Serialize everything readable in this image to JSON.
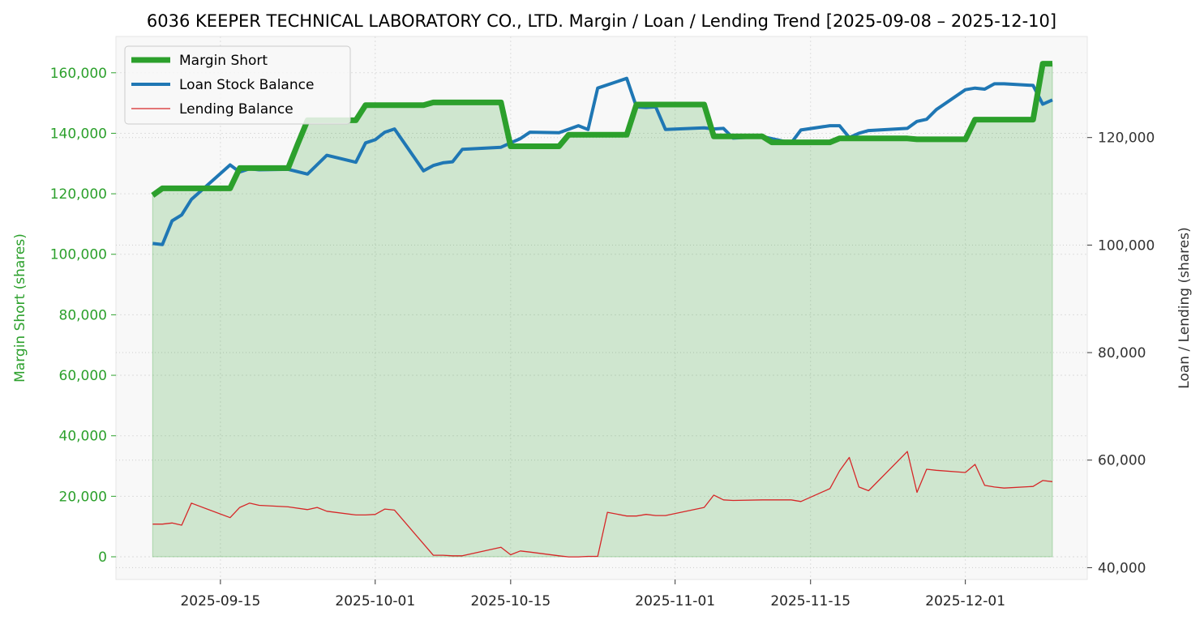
{
  "chart_data": {
    "type": "line",
    "title": "6036 KEEPER TECHNICAL LABORATORY CO., LTD. Margin / Loan / Lending Trend [2025-09-08 – 2025-12-10]",
    "left_axis": {
      "label": "Margin Short (shares)",
      "range": [
        -7500,
        172000
      ],
      "ticks": [
        0,
        20000,
        40000,
        60000,
        80000,
        100000,
        120000,
        140000,
        160000
      ],
      "tick_labels": [
        "0",
        "20,000",
        "40,000",
        "60,000",
        "80,000",
        "100,000",
        "120,000",
        "140,000",
        "160,000"
      ],
      "color": "#2ca02c"
    },
    "right_axis": {
      "label": "Loan / Lending (shares)",
      "range": [
        37800,
        138800
      ],
      "ticks": [
        40000,
        60000,
        80000,
        100000,
        120000
      ],
      "tick_labels": [
        "40,000",
        "60,000",
        "80,000",
        "100,000",
        "120,000"
      ],
      "color": "#333333"
    },
    "x_axis": {
      "start": "2025-09-08",
      "end": "2025-12-10",
      "tick_dates": [
        "2025-09-15",
        "2025-10-01",
        "2025-10-15",
        "2025-11-01",
        "2025-11-15",
        "2025-12-01"
      ],
      "tick_labels": [
        "2025-09-15",
        "2025-10-01",
        "2025-10-15",
        "2025-11-01",
        "2025-11-15",
        "2025-12-01"
      ]
    },
    "grid": true,
    "legend_position": "top-left",
    "series": [
      {
        "name": "Margin Short",
        "axis": "left",
        "color": "#2ca02c",
        "style": "thick line with filled area",
        "points": [
          [
            "2025-09-08",
            119500
          ],
          [
            "2025-09-09",
            121800
          ],
          [
            "2025-09-10",
            121800
          ],
          [
            "2025-09-11",
            121800
          ],
          [
            "2025-09-12",
            121800
          ],
          [
            "2025-09-16",
            121800
          ],
          [
            "2025-09-17",
            128500
          ],
          [
            "2025-09-18",
            128500
          ],
          [
            "2025-09-19",
            128500
          ],
          [
            "2025-09-22",
            128500
          ],
          [
            "2025-09-23",
            136500
          ],
          [
            "2025-09-24",
            144300
          ],
          [
            "2025-09-25",
            144300
          ],
          [
            "2025-09-26",
            144300
          ],
          [
            "2025-09-29",
            144300
          ],
          [
            "2025-09-30",
            149300
          ],
          [
            "2025-10-01",
            149300
          ],
          [
            "2025-10-02",
            149300
          ],
          [
            "2025-10-03",
            149300
          ],
          [
            "2025-10-06",
            149300
          ],
          [
            "2025-10-07",
            150200
          ],
          [
            "2025-10-08",
            150200
          ],
          [
            "2025-10-09",
            150200
          ],
          [
            "2025-10-10",
            150200
          ],
          [
            "2025-10-14",
            150200
          ],
          [
            "2025-10-15",
            135700
          ],
          [
            "2025-10-16",
            135700
          ],
          [
            "2025-10-17",
            135700
          ],
          [
            "2025-10-20",
            135700
          ],
          [
            "2025-10-21",
            139500
          ],
          [
            "2025-10-22",
            139500
          ],
          [
            "2025-10-23",
            139500
          ],
          [
            "2025-10-24",
            139500
          ],
          [
            "2025-10-27",
            139500
          ],
          [
            "2025-10-28",
            149500
          ],
          [
            "2025-10-29",
            149500
          ],
          [
            "2025-10-30",
            149500
          ],
          [
            "2025-10-31",
            149500
          ],
          [
            "2025-11-04",
            149500
          ],
          [
            "2025-11-05",
            139000
          ],
          [
            "2025-11-06",
            139000
          ],
          [
            "2025-11-07",
            139000
          ],
          [
            "2025-11-10",
            139000
          ],
          [
            "2025-11-11",
            137000
          ],
          [
            "2025-11-12",
            137000
          ],
          [
            "2025-11-13",
            137000
          ],
          [
            "2025-11-14",
            137000
          ],
          [
            "2025-11-17",
            137000
          ],
          [
            "2025-11-18",
            138300
          ],
          [
            "2025-11-19",
            138300
          ],
          [
            "2025-11-20",
            138300
          ],
          [
            "2025-11-21",
            138300
          ],
          [
            "2025-11-25",
            138300
          ],
          [
            "2025-11-26",
            138000
          ],
          [
            "2025-11-27",
            138000
          ],
          [
            "2025-11-28",
            138000
          ],
          [
            "2025-12-01",
            138000
          ],
          [
            "2025-12-02",
            144500
          ],
          [
            "2025-12-03",
            144500
          ],
          [
            "2025-12-04",
            144500
          ],
          [
            "2025-12-05",
            144500
          ],
          [
            "2025-12-08",
            144500
          ],
          [
            "2025-12-09",
            163000
          ],
          [
            "2025-12-10",
            163000
          ]
        ]
      },
      {
        "name": "Loan Stock Balance",
        "axis": "right",
        "color": "#1f77b4",
        "style": "medium line",
        "points": [
          [
            "2025-09-08",
            100300
          ],
          [
            "2025-09-09",
            100100
          ],
          [
            "2025-09-10",
            104500
          ],
          [
            "2025-09-11",
            105600
          ],
          [
            "2025-09-12",
            108500
          ],
          [
            "2025-09-16",
            114900
          ],
          [
            "2025-09-17",
            113600
          ],
          [
            "2025-09-18",
            114200
          ],
          [
            "2025-09-19",
            114000
          ],
          [
            "2025-09-22",
            114100
          ],
          [
            "2025-09-24",
            113200
          ],
          [
            "2025-09-26",
            116700
          ],
          [
            "2025-09-29",
            115400
          ],
          [
            "2025-09-30",
            119000
          ],
          [
            "2025-10-01",
            119600
          ],
          [
            "2025-10-02",
            121000
          ],
          [
            "2025-10-03",
            121600
          ],
          [
            "2025-10-06",
            113800
          ],
          [
            "2025-10-07",
            114800
          ],
          [
            "2025-10-08",
            115300
          ],
          [
            "2025-10-09",
            115500
          ],
          [
            "2025-10-10",
            117800
          ],
          [
            "2025-10-14",
            118200
          ],
          [
            "2025-10-15",
            119000
          ],
          [
            "2025-10-16",
            119800
          ],
          [
            "2025-10-17",
            121000
          ],
          [
            "2025-10-20",
            120900
          ],
          [
            "2025-10-22",
            122200
          ],
          [
            "2025-10-23",
            121500
          ],
          [
            "2025-10-24",
            129200
          ],
          [
            "2025-10-27",
            131000
          ],
          [
            "2025-10-28",
            125700
          ],
          [
            "2025-10-29",
            125600
          ],
          [
            "2025-10-30",
            125700
          ],
          [
            "2025-10-31",
            121500
          ],
          [
            "2025-11-04",
            121800
          ],
          [
            "2025-11-05",
            121600
          ],
          [
            "2025-11-06",
            121700
          ],
          [
            "2025-11-07",
            119900
          ],
          [
            "2025-11-10",
            120200
          ],
          [
            "2025-11-13",
            119000
          ],
          [
            "2025-11-14",
            121400
          ],
          [
            "2025-11-17",
            122200
          ],
          [
            "2025-11-18",
            122200
          ],
          [
            "2025-11-19",
            120000
          ],
          [
            "2025-11-20",
            120800
          ],
          [
            "2025-11-21",
            121300
          ],
          [
            "2025-11-25",
            121700
          ],
          [
            "2025-11-26",
            123000
          ],
          [
            "2025-11-27",
            123400
          ],
          [
            "2025-11-28",
            125200
          ],
          [
            "2025-12-01",
            128900
          ],
          [
            "2025-12-02",
            129200
          ],
          [
            "2025-12-03",
            129000
          ],
          [
            "2025-12-04",
            130000
          ],
          [
            "2025-12-05",
            130000
          ],
          [
            "2025-12-08",
            129700
          ],
          [
            "2025-12-09",
            126200
          ],
          [
            "2025-12-10",
            127000
          ]
        ]
      },
      {
        "name": "Lending Balance",
        "axis": "right",
        "color": "#d62728",
        "style": "thin line",
        "points": [
          [
            "2025-09-08",
            48100
          ],
          [
            "2025-09-09",
            48100
          ],
          [
            "2025-09-10",
            48300
          ],
          [
            "2025-09-11",
            47900
          ],
          [
            "2025-09-12",
            52000
          ],
          [
            "2025-09-16",
            49300
          ],
          [
            "2025-09-17",
            51200
          ],
          [
            "2025-09-18",
            52000
          ],
          [
            "2025-09-19",
            51600
          ],
          [
            "2025-09-22",
            51300
          ],
          [
            "2025-09-24",
            50800
          ],
          [
            "2025-09-25",
            51200
          ],
          [
            "2025-09-26",
            50500
          ],
          [
            "2025-09-29",
            49800
          ],
          [
            "2025-09-30",
            49800
          ],
          [
            "2025-10-01",
            49900
          ],
          [
            "2025-10-02",
            50900
          ],
          [
            "2025-10-03",
            50700
          ],
          [
            "2025-10-07",
            42300
          ],
          [
            "2025-10-08",
            42300
          ],
          [
            "2025-10-09",
            42200
          ],
          [
            "2025-10-10",
            42200
          ],
          [
            "2025-10-14",
            43800
          ],
          [
            "2025-10-15",
            42400
          ],
          [
            "2025-10-16",
            43100
          ],
          [
            "2025-10-17",
            42900
          ],
          [
            "2025-10-20",
            42200
          ],
          [
            "2025-10-21",
            42000
          ],
          [
            "2025-10-22",
            42000
          ],
          [
            "2025-10-23",
            42100
          ],
          [
            "2025-10-24",
            42100
          ],
          [
            "2025-10-25",
            50300
          ],
          [
            "2025-10-27",
            49600
          ],
          [
            "2025-10-28",
            49600
          ],
          [
            "2025-10-29",
            49900
          ],
          [
            "2025-10-30",
            49700
          ],
          [
            "2025-10-31",
            49700
          ],
          [
            "2025-11-04",
            51200
          ],
          [
            "2025-11-05",
            53500
          ],
          [
            "2025-11-06",
            52600
          ],
          [
            "2025-11-07",
            52500
          ],
          [
            "2025-11-10",
            52600
          ],
          [
            "2025-11-13",
            52600
          ],
          [
            "2025-11-14",
            52300
          ],
          [
            "2025-11-17",
            54700
          ],
          [
            "2025-11-18",
            58000
          ],
          [
            "2025-11-19",
            60500
          ],
          [
            "2025-11-20",
            55000
          ],
          [
            "2025-11-21",
            54300
          ],
          [
            "2025-11-25",
            61600
          ],
          [
            "2025-11-26",
            54000
          ],
          [
            "2025-11-27",
            58300
          ],
          [
            "2025-11-28",
            58100
          ],
          [
            "2025-12-01",
            57700
          ],
          [
            "2025-12-02",
            59200
          ],
          [
            "2025-12-03",
            55300
          ],
          [
            "2025-12-04",
            55000
          ],
          [
            "2025-12-05",
            54800
          ],
          [
            "2025-12-08",
            55100
          ],
          [
            "2025-12-09",
            56200
          ],
          [
            "2025-12-10",
            56000
          ]
        ]
      }
    ]
  }
}
